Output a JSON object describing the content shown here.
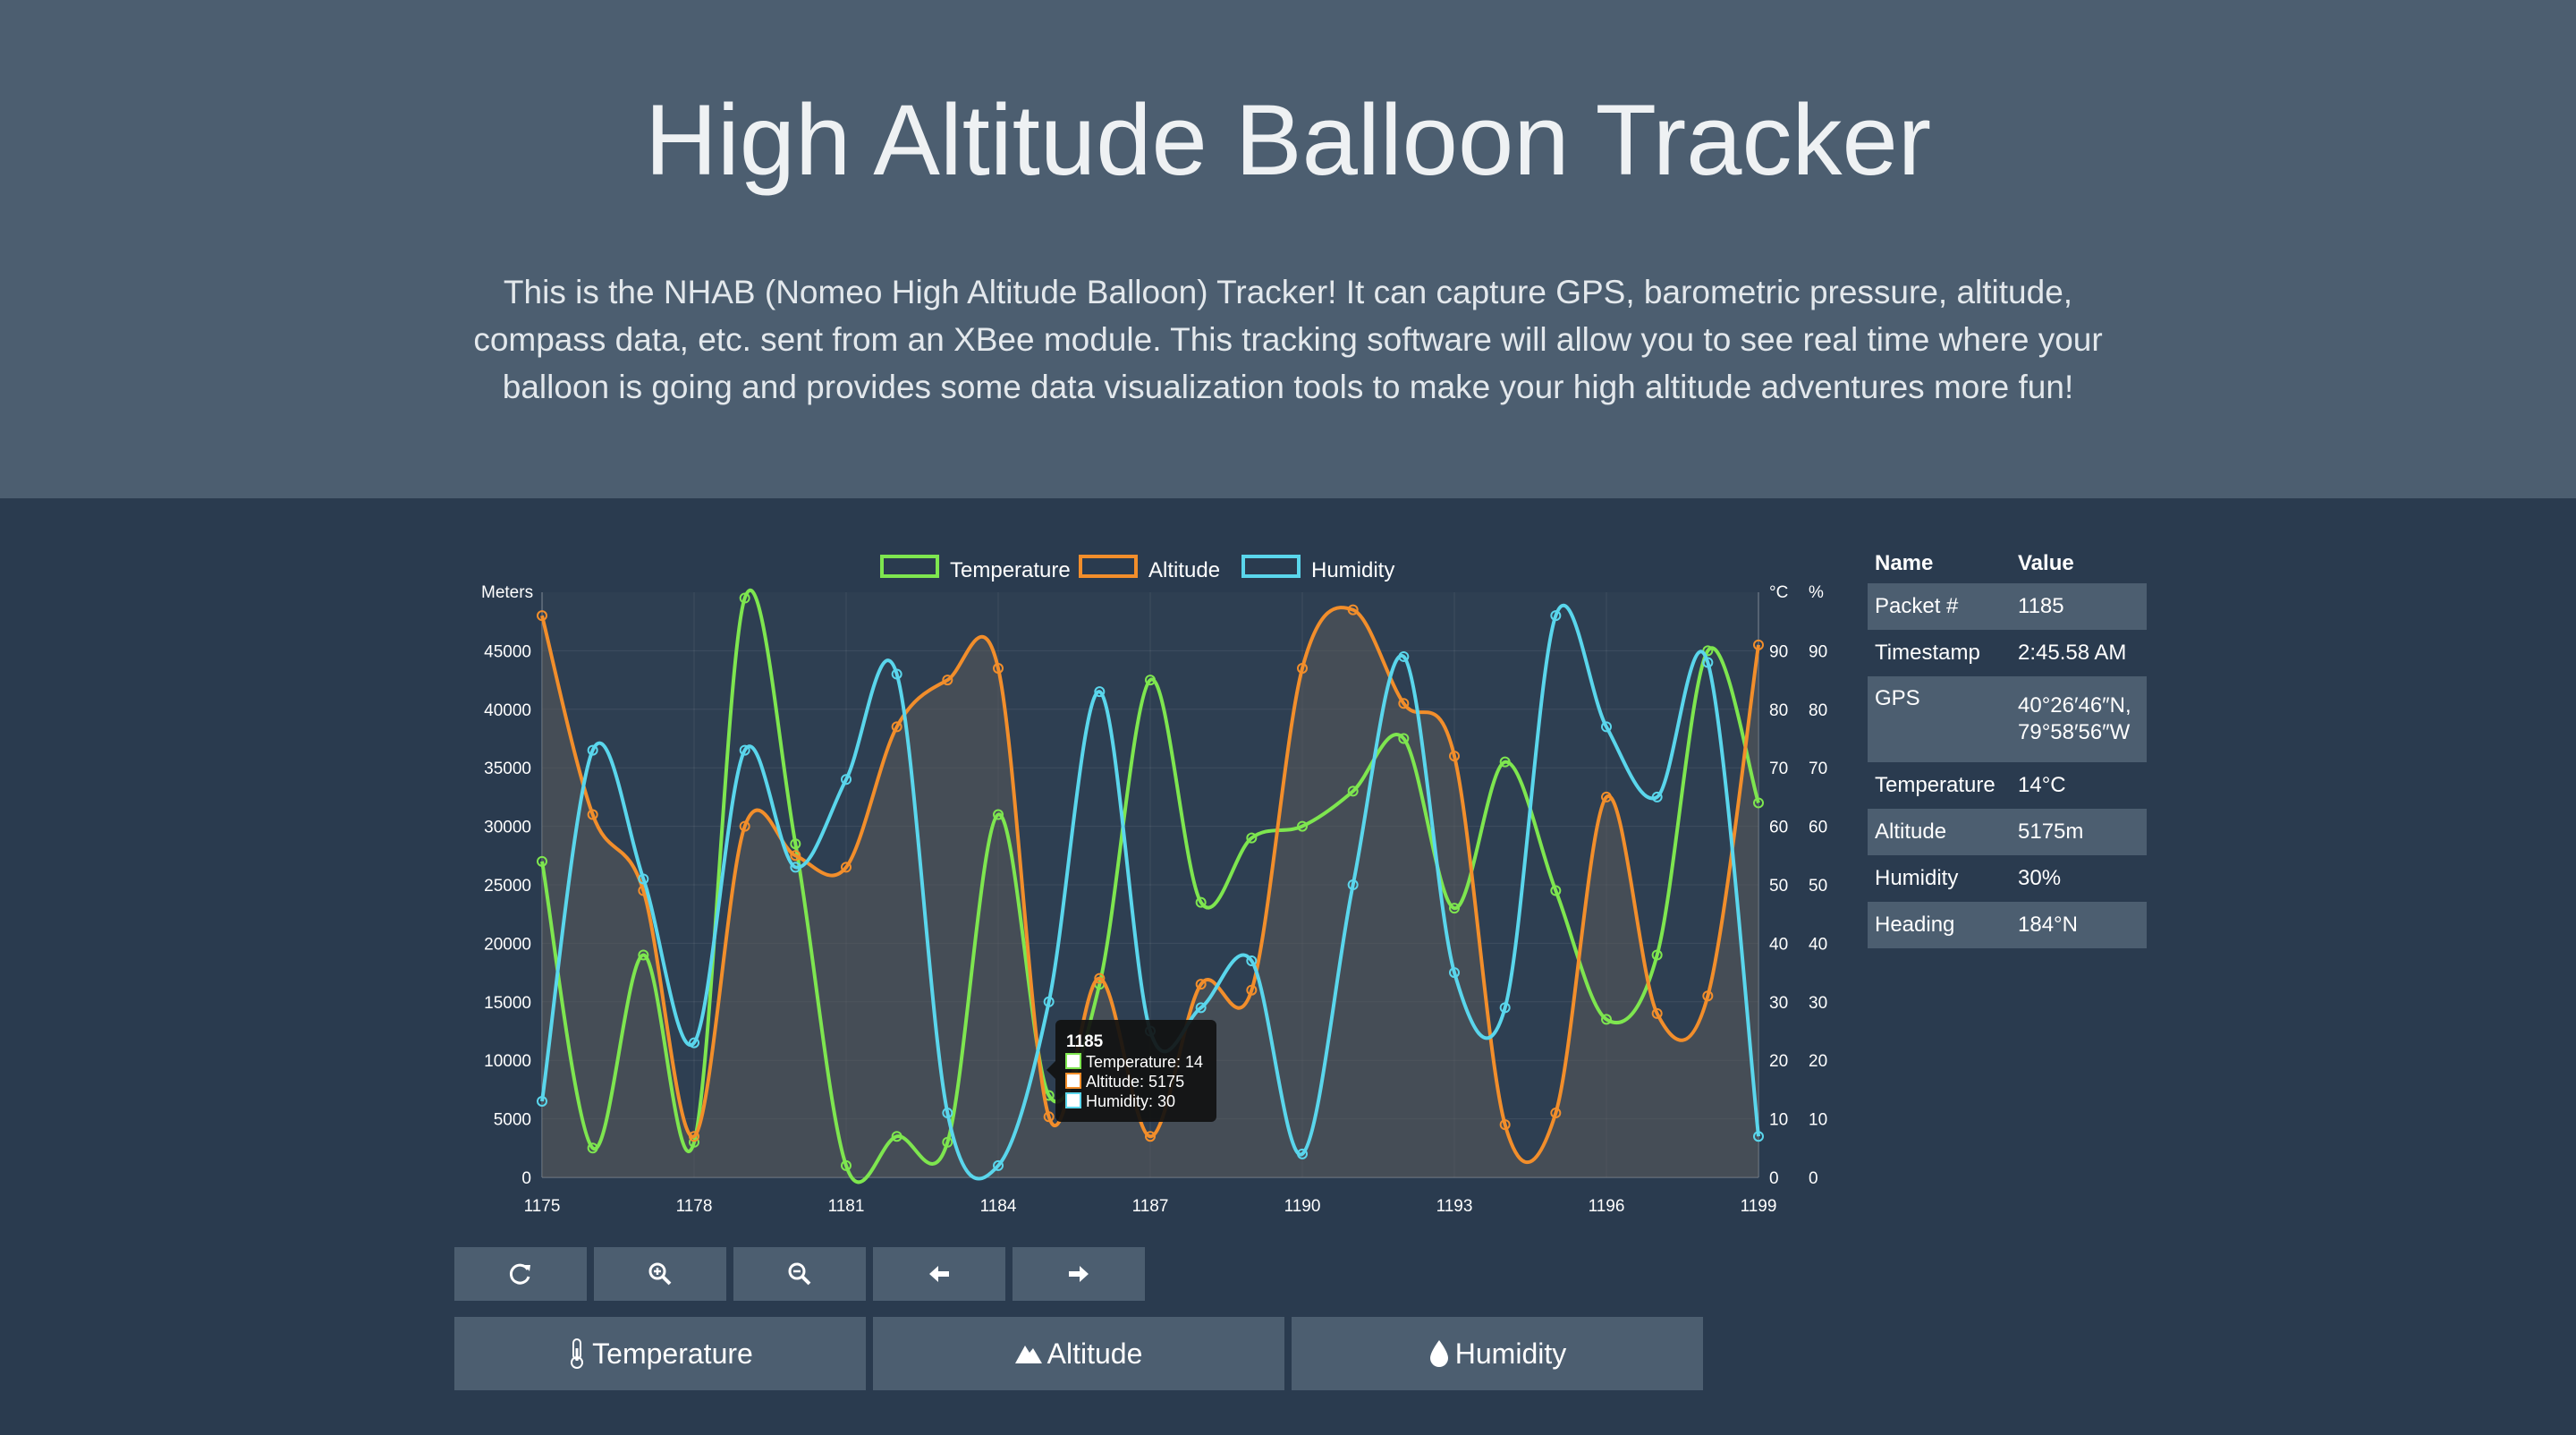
{
  "header": {
    "title": "High Altitude Balloon Tracker",
    "description": "This is the NHAB (Nomeo High Altitude Balloon) Tracker! It can capture GPS, barometric pressure, altitude, compass data, etc. sent from an XBee module. This tracking software will allow you to see real time where your balloon is going and provides some data visualization tools to make your high altitude adventures more fun!"
  },
  "colors": {
    "hero_bg": "#4c5e70",
    "page_bg": "#2a3b4f",
    "temperature": "#7ee64f",
    "altitude": "#f28e2b",
    "humidity": "#5ad6ec",
    "tooltip_bg": "#111111"
  },
  "chart_data": {
    "type": "line",
    "legend_position": "top",
    "grid": true,
    "x": [
      1175,
      1176,
      1177,
      1178,
      1179,
      1180,
      1181,
      1182,
      1183,
      1184,
      1185,
      1186,
      1187,
      1188,
      1189,
      1190,
      1191,
      1192,
      1193,
      1194,
      1195,
      1196,
      1197,
      1198,
      1199
    ],
    "x_ticks": [
      1175,
      1178,
      1181,
      1184,
      1187,
      1190,
      1193,
      1196,
      1199
    ],
    "y_left": {
      "label": "Meters",
      "range": [
        0,
        50000
      ],
      "ticks": [
        0,
        5000,
        10000,
        15000,
        20000,
        25000,
        30000,
        35000,
        40000,
        45000
      ]
    },
    "y_right_1": {
      "label": "°C",
      "range": [
        0,
        100
      ],
      "ticks": [
        0,
        10,
        20,
        30,
        40,
        50,
        60,
        70,
        80,
        90
      ]
    },
    "y_right_2": {
      "label": "%",
      "range": [
        0,
        100
      ],
      "ticks": [
        0,
        10,
        20,
        30,
        40,
        50,
        60,
        70,
        80,
        90
      ]
    },
    "series": [
      {
        "name": "Temperature",
        "axis": "right",
        "values": [
          54,
          5,
          38,
          6,
          99,
          57,
          2,
          7,
          6,
          62,
          14,
          33,
          85,
          47,
          58,
          60,
          66,
          75,
          46,
          71,
          49,
          27,
          38,
          90,
          64
        ]
      },
      {
        "name": "Altitude",
        "axis": "left",
        "values": [
          48000,
          31000,
          24500,
          3500,
          30000,
          27500,
          26500,
          38500,
          42500,
          43500,
          5175,
          17000,
          3500,
          16500,
          16000,
          43500,
          48500,
          40500,
          36000,
          4500,
          5500,
          32500,
          14000,
          15500,
          45500
        ]
      },
      {
        "name": "Humidity",
        "axis": "right",
        "values": [
          13,
          73,
          51,
          23,
          73,
          53,
          68,
          86,
          11,
          2,
          30,
          83,
          25,
          29,
          37,
          4,
          50,
          89,
          35,
          29,
          96,
          77,
          65,
          88,
          7
        ]
      }
    ],
    "tooltip": {
      "title": "1185",
      "lines": [
        "Temperature: 14",
        "Altitude: 5175",
        "Humidity: 30"
      ]
    }
  },
  "table": {
    "headers": [
      "Name",
      "Value"
    ],
    "rows": [
      {
        "name": "Packet #",
        "value": "1185"
      },
      {
        "name": "Timestamp",
        "value": "2:45.58 AM"
      },
      {
        "name": "GPS",
        "value": "40°26′46″N, 79°58′56″W"
      },
      {
        "name": "Temperature",
        "value": "14°C"
      },
      {
        "name": "Altitude",
        "value": "5175m"
      },
      {
        "name": "Humidity",
        "value": "30%"
      },
      {
        "name": "Heading",
        "value": "184°N"
      }
    ]
  },
  "controls": {
    "icons": [
      "refresh-icon",
      "zoom-in-icon",
      "zoom-out-icon",
      "arrow-left-icon",
      "arrow-right-icon"
    ]
  },
  "series_buttons": [
    {
      "label": "Temperature",
      "icon": "thermometer-icon"
    },
    {
      "label": "Altitude",
      "icon": "mountain-icon"
    },
    {
      "label": "Humidity",
      "icon": "droplet-icon"
    }
  ]
}
